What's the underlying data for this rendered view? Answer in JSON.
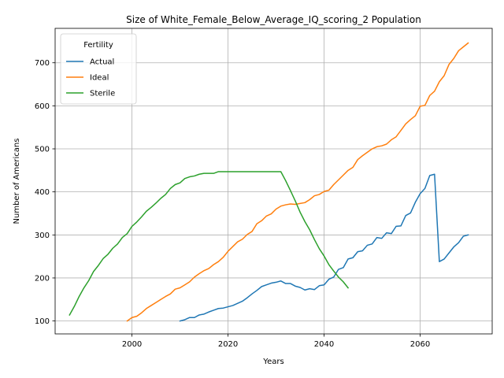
{
  "chart_data": {
    "type": "line",
    "title": "Size of White_Female_Below_Average_IQ_scoring_2 Population",
    "xlabel": "Years",
    "ylabel": "Number of Americans",
    "xlim": [
      1984,
      2075
    ],
    "ylim": [
      70,
      780
    ],
    "xticks": [
      2000,
      2020,
      2040,
      2060
    ],
    "yticks": [
      100,
      200,
      300,
      400,
      500,
      600,
      700
    ],
    "grid": true,
    "legend": {
      "title": "Fertility",
      "placement": "top-left"
    },
    "series": [
      {
        "name": "Actual",
        "color": "#1f77b4",
        "x": [
          2010,
          2011,
          2012,
          2013,
          2014,
          2015,
          2016,
          2017,
          2018,
          2019,
          2020,
          2021,
          2022,
          2023,
          2024,
          2025,
          2026,
          2027,
          2028,
          2029,
          2030,
          2031,
          2032,
          2033,
          2034,
          2035,
          2036,
          2037,
          2038,
          2039,
          2040,
          2041,
          2042,
          2043,
          2044,
          2045,
          2046,
          2047,
          2048,
          2049,
          2050,
          2051,
          2052,
          2053,
          2054,
          2055,
          2056,
          2057,
          2058,
          2059,
          2060,
          2061,
          2062,
          2063,
          2064,
          2065,
          2066,
          2067,
          2068,
          2069,
          2070
        ],
        "values": [
          100,
          103,
          108,
          108,
          114,
          116,
          121,
          125,
          129,
          130,
          133,
          136,
          141,
          146,
          154,
          163,
          171,
          180,
          184,
          188,
          190,
          193,
          187,
          187,
          181,
          178,
          172,
          175,
          173,
          182,
          184,
          197,
          202,
          220,
          224,
          244,
          247,
          261,
          263,
          276,
          279,
          294,
          292,
          305,
          303,
          320,
          321,
          345,
          351,
          376,
          396,
          408,
          438,
          441,
          238,
          244,
          258,
          272,
          282,
          297,
          300
        ]
      },
      {
        "name": "Ideal",
        "color": "#ff7f0e",
        "x": [
          1999,
          2000,
          2001,
          2002,
          2003,
          2004,
          2005,
          2006,
          2007,
          2008,
          2009,
          2010,
          2011,
          2012,
          2013,
          2014,
          2015,
          2016,
          2017,
          2018,
          2019,
          2020,
          2021,
          2022,
          2023,
          2024,
          2025,
          2026,
          2027,
          2028,
          2029,
          2030,
          2031,
          2032,
          2033,
          2034,
          2035,
          2036,
          2037,
          2038,
          2039,
          2040,
          2041,
          2042,
          2043,
          2044,
          2045,
          2046,
          2047,
          2048,
          2049,
          2050,
          2051,
          2052,
          2053,
          2054,
          2055,
          2056,
          2057,
          2058,
          2059,
          2060,
          2061,
          2062,
          2063,
          2064,
          2065,
          2066,
          2067,
          2068,
          2069,
          2070
        ],
        "values": [
          100,
          108,
          111,
          119,
          129,
          136,
          143,
          150,
          157,
          163,
          174,
          177,
          184,
          191,
          202,
          210,
          217,
          222,
          231,
          238,
          248,
          262,
          273,
          284,
          290,
          301,
          308,
          326,
          333,
          344,
          349,
          360,
          367,
          370,
          372,
          371,
          373,
          375,
          382,
          391,
          394,
          401,
          404,
          417,
          428,
          439,
          450,
          457,
          475,
          484,
          492,
          500,
          505,
          507,
          511,
          521,
          528,
          543,
          558,
          568,
          577,
          599,
          601,
          624,
          634,
          656,
          670,
          696,
          710,
          728,
          737,
          746
        ]
      },
      {
        "name": "Sterile",
        "color": "#2ca02c",
        "x": [
          1987,
          1988,
          1989,
          1990,
          1991,
          1992,
          1993,
          1994,
          1995,
          1996,
          1997,
          1998,
          1999,
          2000,
          2001,
          2002,
          2003,
          2004,
          2005,
          2006,
          2007,
          2008,
          2009,
          2010,
          2011,
          2012,
          2013,
          2014,
          2015,
          2016,
          2017,
          2018,
          2019,
          2020,
          2021,
          2022,
          2023,
          2024,
          2025,
          2026,
          2027,
          2028,
          2029,
          2030,
          2031,
          2032,
          2033,
          2034,
          2035,
          2036,
          2037,
          2038,
          2039,
          2040,
          2041,
          2042,
          2043,
          2044,
          2045
        ],
        "values": [
          114,
          134,
          157,
          177,
          194,
          215,
          229,
          245,
          255,
          269,
          279,
          294,
          303,
          320,
          330,
          342,
          355,
          364,
          374,
          385,
          394,
          408,
          417,
          421,
          431,
          435,
          437,
          441,
          443,
          443,
          443,
          447,
          447,
          447,
          447,
          447,
          447,
          447,
          447,
          447,
          447,
          447,
          447,
          447,
          447,
          426,
          403,
          379,
          353,
          331,
          312,
          289,
          268,
          251,
          231,
          216,
          202,
          191,
          177
        ]
      }
    ]
  }
}
